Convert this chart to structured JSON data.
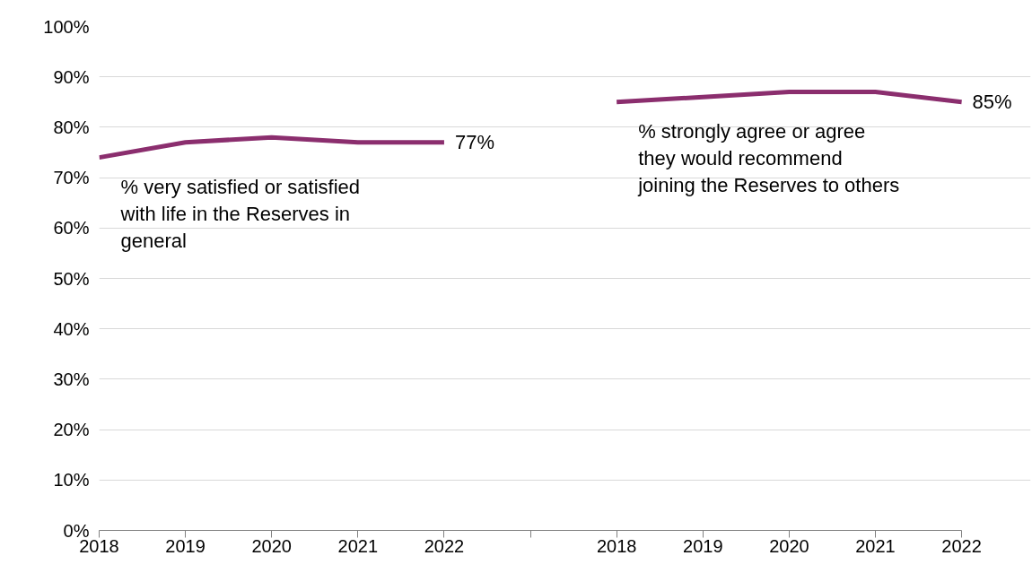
{
  "chart_data": {
    "type": "line",
    "categories": [
      "2018",
      "2019",
      "2020",
      "2021",
      "2022",
      null,
      "2018",
      "2019",
      "2020",
      "2021",
      "2022"
    ],
    "series": [
      {
        "name": "% very satisfied or satisfied\nwith life in the Reserves in\ngeneral",
        "color": "#8b2e6e",
        "values": [
          74,
          77,
          78,
          77,
          77,
          null,
          null,
          null,
          null,
          null,
          null
        ],
        "value_labels": [
          null,
          null,
          null,
          null,
          "77%",
          null,
          null,
          null,
          null,
          null,
          null
        ]
      },
      {
        "name": "% strongly agree or agree\nthey would recommend\njoining the Reserves to others",
        "color": "#8b2e6e",
        "values": [
          null,
          null,
          null,
          null,
          null,
          null,
          85,
          86,
          87,
          87,
          85
        ],
        "value_labels": [
          null,
          null,
          null,
          null,
          null,
          null,
          null,
          null,
          null,
          null,
          "85%"
        ]
      }
    ],
    "ylim": [
      0,
      100
    ],
    "yticks": [
      {
        "value": 0,
        "label": "0%"
      },
      {
        "value": 10,
        "label": "10%"
      },
      {
        "value": 20,
        "label": "20%"
      },
      {
        "value": 30,
        "label": "30%"
      },
      {
        "value": 40,
        "label": "40%"
      },
      {
        "value": 50,
        "label": "50%"
      },
      {
        "value": 60,
        "label": "60%"
      },
      {
        "value": 70,
        "label": "70%"
      },
      {
        "value": 80,
        "label": "80%"
      },
      {
        "value": 90,
        "label": "90%"
      },
      {
        "value": 100,
        "label": "100%"
      }
    ],
    "grid": "y",
    "marker": "none",
    "line_style": "solid"
  }
}
